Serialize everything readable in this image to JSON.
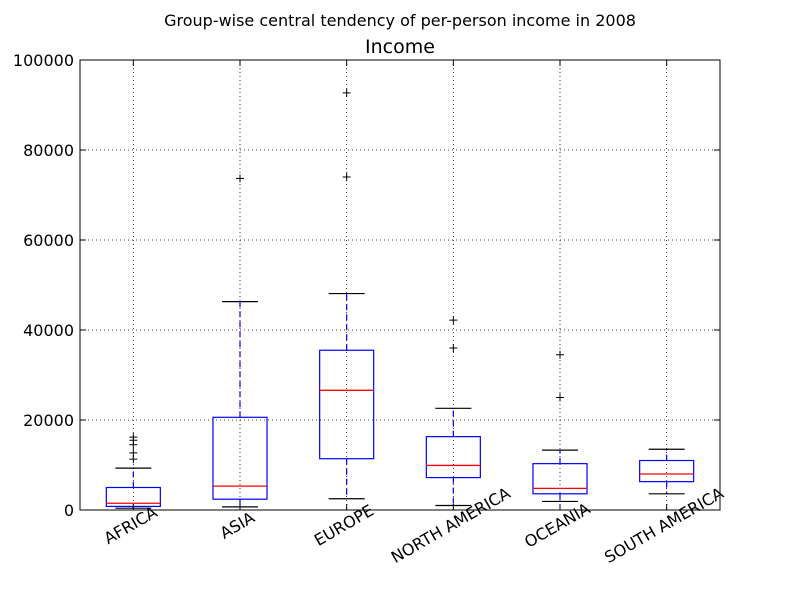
{
  "figure_title": "Group-wise central tendency of per-person income in 2008",
  "chart_data": {
    "type": "box",
    "title": "Income",
    "xlabel": "",
    "ylabel": "",
    "ylim": [
      0,
      100000
    ],
    "yticks": [
      0,
      20000,
      40000,
      60000,
      80000,
      100000
    ],
    "grid": true,
    "categories": [
      "AFRICA",
      "ASIA",
      "EUROPE",
      "NORTH AMERICA",
      "OCEANIA",
      "SOUTH AMERICA"
    ],
    "boxes": [
      {
        "category": "AFRICA",
        "whisker_low": 400,
        "q1": 800,
        "median": 1500,
        "q3": 5000,
        "whisker_high": 9300,
        "outliers": [
          11300,
          12700,
          14500,
          15500,
          16200
        ]
      },
      {
        "category": "ASIA",
        "whisker_low": 700,
        "q1": 2400,
        "median": 5300,
        "q3": 20600,
        "whisker_high": 46300,
        "outliers": [
          73700
        ]
      },
      {
        "category": "EUROPE",
        "whisker_low": 2500,
        "q1": 11400,
        "median": 26600,
        "q3": 35500,
        "whisker_high": 48100,
        "outliers": [
          74000,
          92700
        ]
      },
      {
        "category": "NORTH AMERICA",
        "whisker_low": 1000,
        "q1": 7200,
        "median": 9900,
        "q3": 16300,
        "whisker_high": 22600,
        "outliers": [
          36000,
          42200
        ]
      },
      {
        "category": "OCEANIA",
        "whisker_low": 1900,
        "q1": 3600,
        "median": 4800,
        "q3": 10300,
        "whisker_high": 13300,
        "outliers": [
          25000,
          34500
        ]
      },
      {
        "category": "SOUTH AMERICA",
        "whisker_low": 3600,
        "q1": 6300,
        "median": 8000,
        "q3": 11000,
        "whisker_high": 13500,
        "outliers": []
      }
    ],
    "colors": {
      "box": "#0000ff",
      "median": "#ff0000",
      "flier": "#000000",
      "grid": "#808080"
    }
  }
}
